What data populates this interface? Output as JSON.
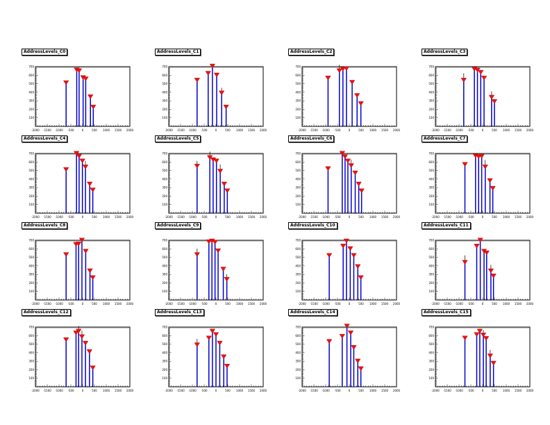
{
  "window": {
    "background": "#ffffff"
  },
  "chart_data": {
    "type": "scatter",
    "layout": "4x4-grid",
    "description": "16-channel address-levels calibration spectra: blue spike histograms with red triangle-down peak markers",
    "shared_axes": {
      "xlim": [
        -2000,
        2000
      ],
      "xticks": [
        -2000,
        -1500,
        -1000,
        -500,
        0,
        500,
        1000,
        1500,
        2000
      ],
      "xminor_step": 100,
      "ylim": [
        0,
        700
      ],
      "yticks": [
        100,
        200,
        300,
        400,
        500,
        600,
        700
      ],
      "yminor_step": 20,
      "grid": false,
      "legend": "none"
    },
    "style": {
      "spike_color": "#0000cc",
      "marker_shape": "triangle-down",
      "marker_color": "#ee1111",
      "marker_edge_color": "#aa0000",
      "error_bar_color": "#000000",
      "frame_border_color": "#000000",
      "frame_inset_color": "#999999",
      "tick_label_color": "#000000"
    },
    "panels": [
      {
        "title": "AddressLevels_C0",
        "points": [
          {
            "x": -700,
            "y": 500
          },
          {
            "x": -250,
            "y": 650
          },
          {
            "x": -150,
            "y": 640
          },
          {
            "x": 20,
            "y": 560
          },
          {
            "x": 130,
            "y": 545
          },
          {
            "x": 330,
            "y": 335
          },
          {
            "x": 450,
            "y": 215
          }
        ]
      },
      {
        "title": "AddressLevels_C1",
        "points": [
          {
            "x": -800,
            "y": 530
          },
          {
            "x": -330,
            "y": 610
          },
          {
            "x": -150,
            "y": 695
          },
          {
            "x": 30,
            "y": 590
          },
          {
            "x": 240,
            "y": 380,
            "err": 40
          },
          {
            "x": 430,
            "y": 215
          }
        ]
      },
      {
        "title": "AddressLevels_C2",
        "points": [
          {
            "x": -900,
            "y": 555
          },
          {
            "x": -420,
            "y": 640,
            "err": 50
          },
          {
            "x": -270,
            "y": 660
          },
          {
            "x": -120,
            "y": 665
          },
          {
            "x": 120,
            "y": 505
          },
          {
            "x": 330,
            "y": 350
          },
          {
            "x": 490,
            "y": 255
          }
        ]
      },
      {
        "title": "AddressLevels_C3",
        "points": [
          {
            "x": -800,
            "y": 530,
            "err": 60
          },
          {
            "x": -350,
            "y": 660
          },
          {
            "x": -220,
            "y": 648
          },
          {
            "x": -80,
            "y": 622
          },
          {
            "x": 60,
            "y": 555
          },
          {
            "x": 380,
            "y": 330,
            "err": 50
          },
          {
            "x": 500,
            "y": 280
          }
        ]
      },
      {
        "title": "AddressLevels_C4",
        "points": [
          {
            "x": -700,
            "y": 500
          },
          {
            "x": -260,
            "y": 690
          },
          {
            "x": -150,
            "y": 655
          },
          {
            "x": -10,
            "y": 600
          },
          {
            "x": 120,
            "y": 530,
            "err": 50
          },
          {
            "x": 300,
            "y": 330
          },
          {
            "x": 430,
            "y": 260
          }
        ]
      },
      {
        "title": "AddressLevels_C5",
        "points": [
          {
            "x": -800,
            "y": 540,
            "err": 40
          },
          {
            "x": -260,
            "y": 640,
            "err": 50
          },
          {
            "x": -120,
            "y": 615
          },
          {
            "x": 20,
            "y": 600
          },
          {
            "x": 180,
            "y": 480,
            "err": 60
          },
          {
            "x": 350,
            "y": 330
          },
          {
            "x": 480,
            "y": 250
          }
        ]
      },
      {
        "title": "AddressLevels_C6",
        "points": [
          {
            "x": -900,
            "y": 510
          },
          {
            "x": -300,
            "y": 690
          },
          {
            "x": -180,
            "y": 650
          },
          {
            "x": -60,
            "y": 600
          },
          {
            "x": 80,
            "y": 545,
            "err": 50
          },
          {
            "x": 250,
            "y": 460
          },
          {
            "x": 400,
            "y": 330
          },
          {
            "x": 520,
            "y": 250
          }
        ]
      },
      {
        "title": "AddressLevels_C7",
        "points": [
          {
            "x": -750,
            "y": 560
          },
          {
            "x": -300,
            "y": 660
          },
          {
            "x": -170,
            "y": 650
          },
          {
            "x": -40,
            "y": 655
          },
          {
            "x": 110,
            "y": 530,
            "err": 60
          },
          {
            "x": 310,
            "y": 370
          },
          {
            "x": 430,
            "y": 280
          }
        ]
      },
      {
        "title": "AddressLevels_C8",
        "points": [
          {
            "x": -700,
            "y": 520
          },
          {
            "x": -280,
            "y": 640
          },
          {
            "x": -170,
            "y": 645
          },
          {
            "x": -30,
            "y": 690
          },
          {
            "x": 130,
            "y": 560
          },
          {
            "x": 310,
            "y": 330
          },
          {
            "x": 430,
            "y": 250
          }
        ]
      },
      {
        "title": "AddressLevels_C9",
        "points": [
          {
            "x": -800,
            "y": 520,
            "err": 50
          },
          {
            "x": -300,
            "y": 670
          },
          {
            "x": -170,
            "y": 680
          },
          {
            "x": -40,
            "y": 665
          },
          {
            "x": 90,
            "y": 565
          },
          {
            "x": 310,
            "y": 350
          },
          {
            "x": 460,
            "y": 230,
            "err": 40
          }
        ]
      },
      {
        "title": "AddressLevels_C10",
        "points": [
          {
            "x": -850,
            "y": 510
          },
          {
            "x": -260,
            "y": 620
          },
          {
            "x": -120,
            "y": 680
          },
          {
            "x": 40,
            "y": 590
          },
          {
            "x": 190,
            "y": 510
          },
          {
            "x": 360,
            "y": 380
          },
          {
            "x": 490,
            "y": 250
          }
        ]
      },
      {
        "title": "AddressLevels_C11",
        "points": [
          {
            "x": -750,
            "y": 430,
            "err": 60
          },
          {
            "x": -250,
            "y": 620
          },
          {
            "x": -100,
            "y": 690
          },
          {
            "x": 60,
            "y": 560
          },
          {
            "x": 170,
            "y": 540
          },
          {
            "x": 350,
            "y": 330,
            "err": 50
          },
          {
            "x": 460,
            "y": 270
          }
        ]
      },
      {
        "title": "AddressLevels_C12",
        "points": [
          {
            "x": -700,
            "y": 540
          },
          {
            "x": -280,
            "y": 620
          },
          {
            "x": -170,
            "y": 640,
            "err": 40
          },
          {
            "x": -30,
            "y": 575,
            "err": 50
          },
          {
            "x": 120,
            "y": 500
          },
          {
            "x": 290,
            "y": 400
          },
          {
            "x": 430,
            "y": 210
          }
        ]
      },
      {
        "title": "AddressLevels_C13",
        "points": [
          {
            "x": -800,
            "y": 480,
            "err": 50
          },
          {
            "x": -300,
            "y": 560
          },
          {
            "x": -150,
            "y": 640
          },
          {
            "x": 0,
            "y": 600
          },
          {
            "x": 160,
            "y": 500
          },
          {
            "x": 330,
            "y": 340
          },
          {
            "x": 470,
            "y": 230
          }
        ]
      },
      {
        "title": "AddressLevels_C14",
        "points": [
          {
            "x": -850,
            "y": 520
          },
          {
            "x": -300,
            "y": 580
          },
          {
            "x": -100,
            "y": 700
          },
          {
            "x": 60,
            "y": 620
          },
          {
            "x": 190,
            "y": 450
          },
          {
            "x": 360,
            "y": 290
          },
          {
            "x": 490,
            "y": 200
          }
        ]
      },
      {
        "title": "AddressLevels_C15",
        "points": [
          {
            "x": -750,
            "y": 560
          },
          {
            "x": -250,
            "y": 600
          },
          {
            "x": -120,
            "y": 640
          },
          {
            "x": 30,
            "y": 595,
            "err": 40
          },
          {
            "x": 150,
            "y": 555
          },
          {
            "x": 320,
            "y": 350,
            "err": 50
          },
          {
            "x": 460,
            "y": 265
          }
        ]
      }
    ]
  }
}
